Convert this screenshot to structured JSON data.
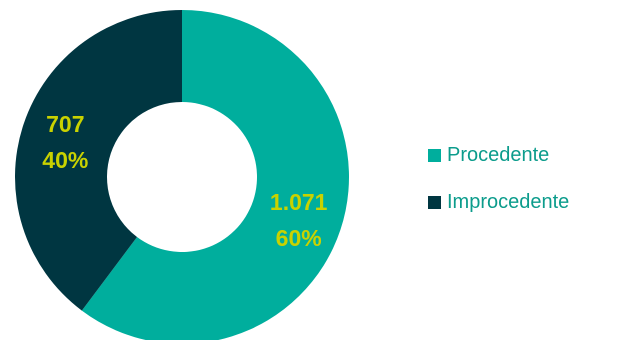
{
  "chart_data": {
    "type": "pie",
    "donut": true,
    "legend_position": "right",
    "slices": [
      {
        "name": "Procedente",
        "value": 1071,
        "value_label": "1.071",
        "percent_label": "60%",
        "color": "#00ae9d"
      },
      {
        "name": "Improcedente",
        "value": 707,
        "value_label": "707",
        "percent_label": "40%",
        "color": "#003641"
      }
    ],
    "label_color": "#c9d200",
    "legend_text_color": "#0c9c8c"
  }
}
